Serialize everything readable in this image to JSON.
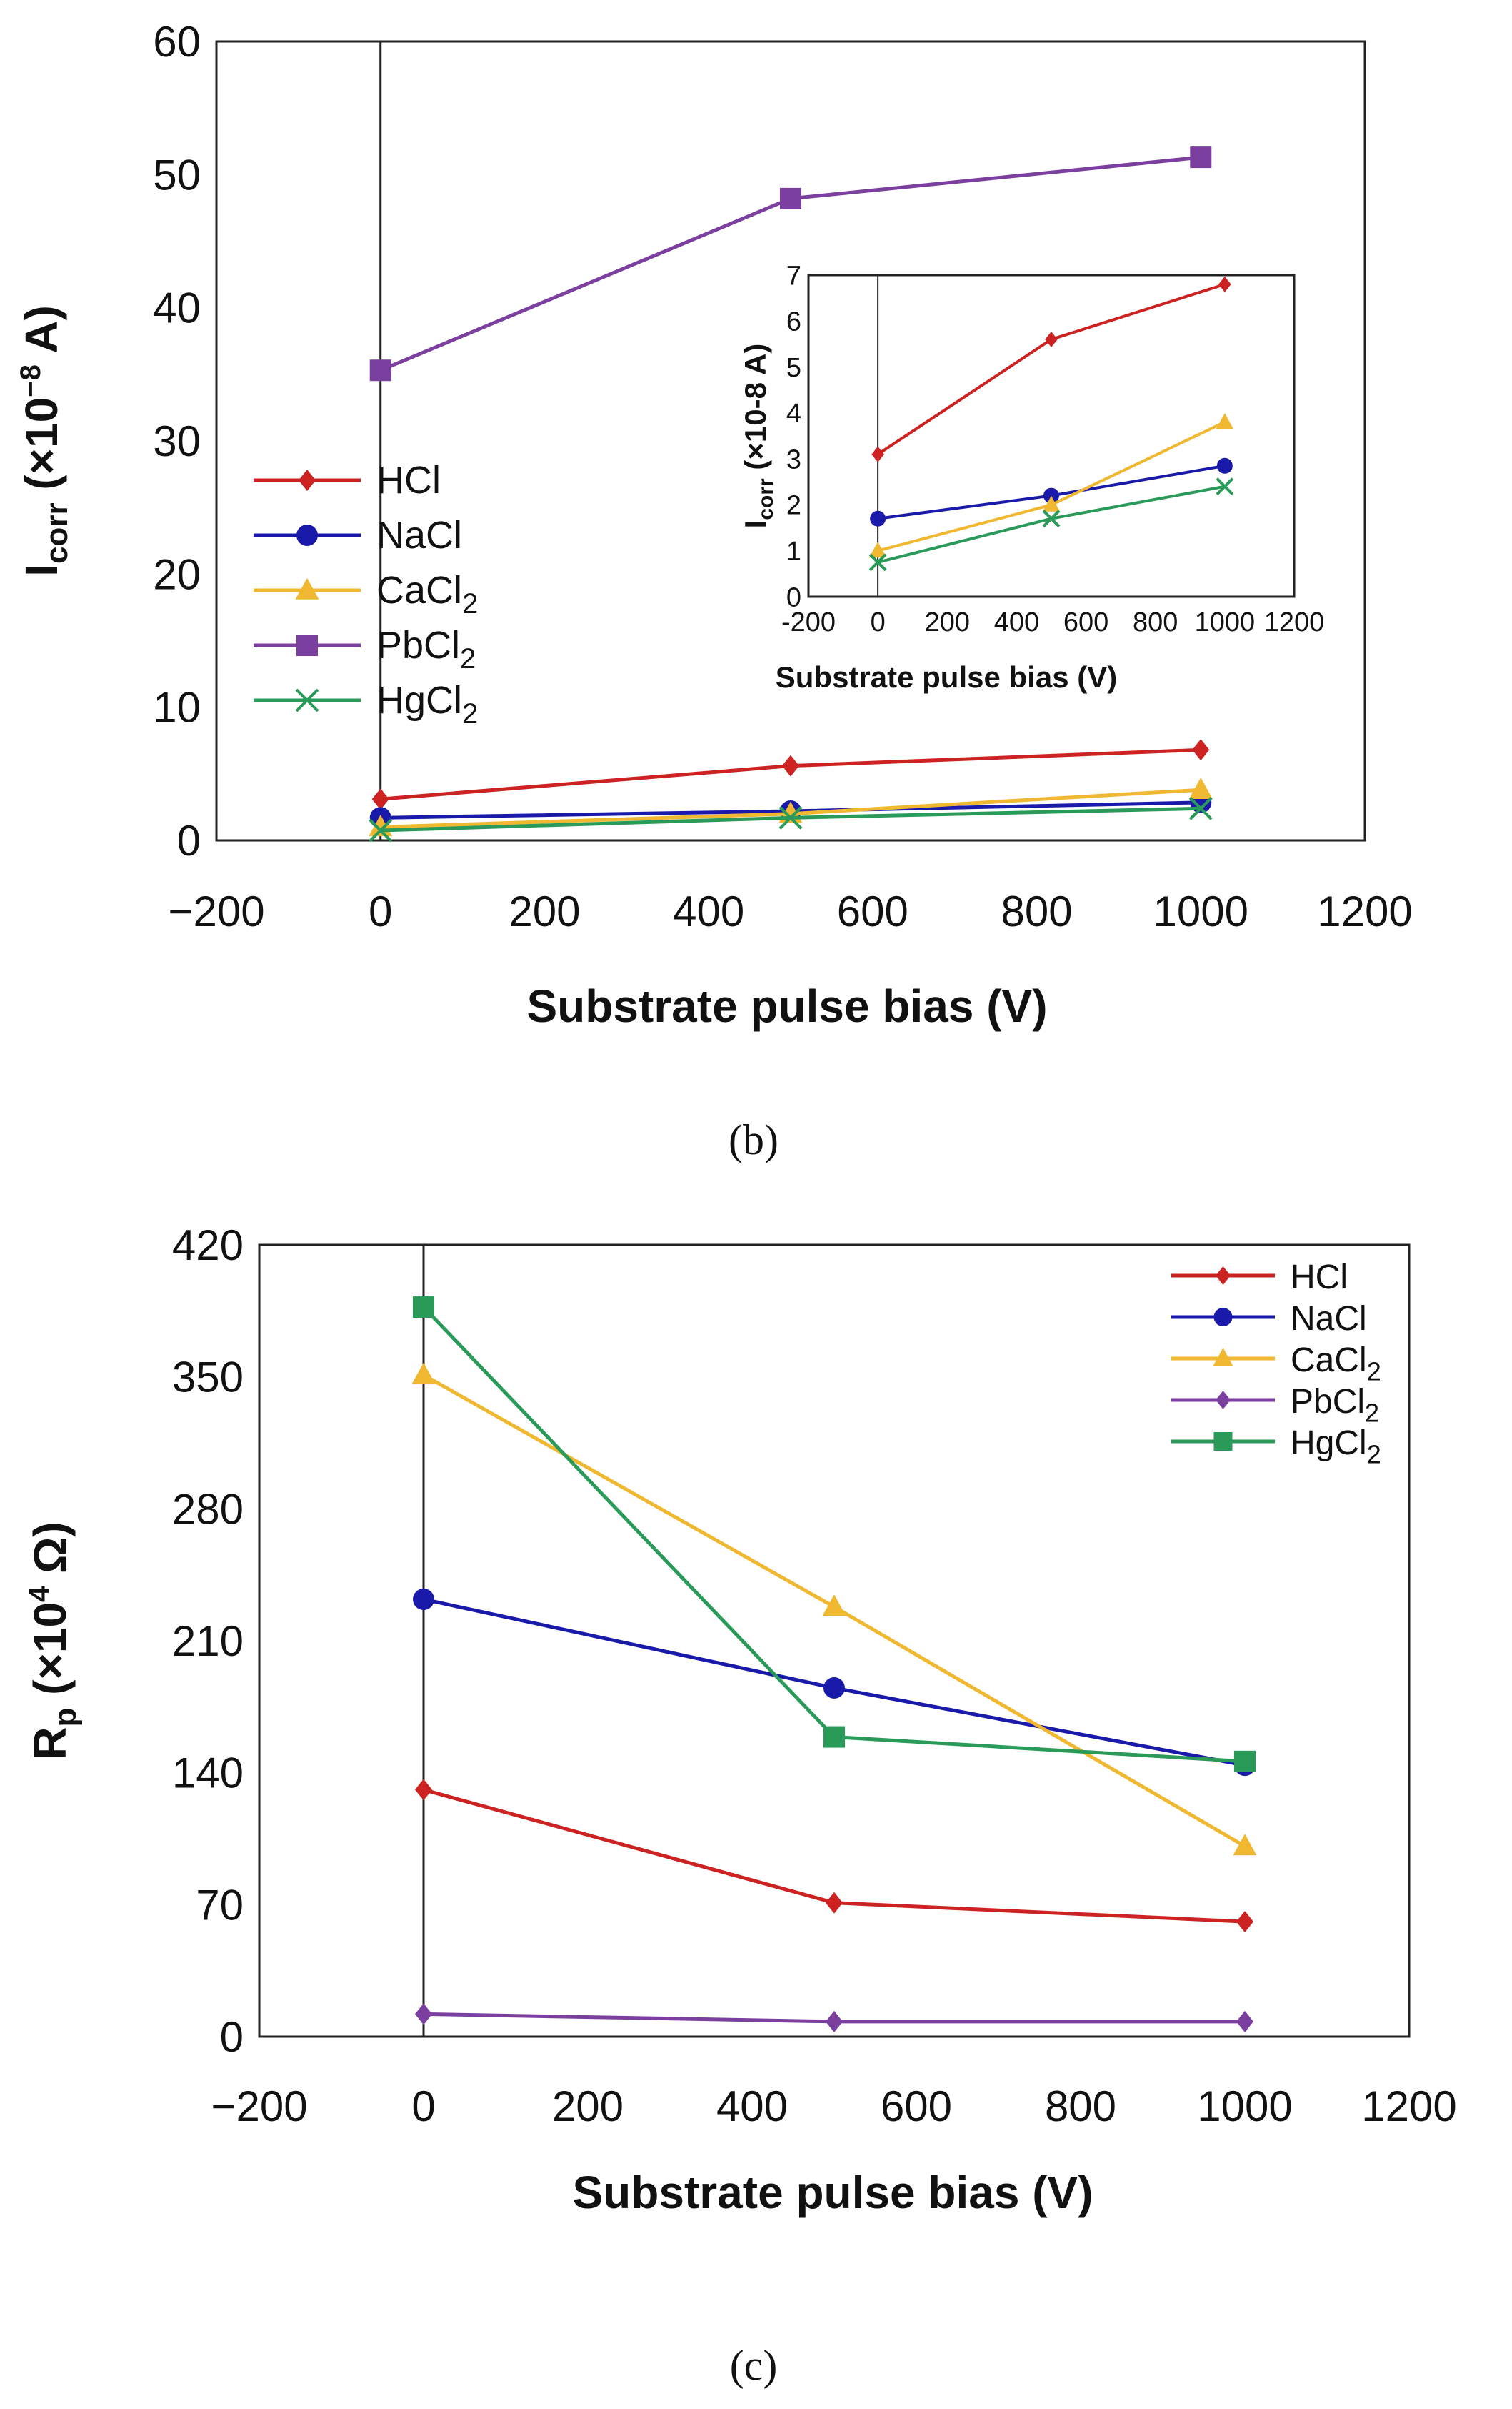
{
  "chart_data": [
    {
      "type": "line",
      "panel_label": "(b)",
      "xlabel": "Substrate pulse bias (V)",
      "ylabel": "I<sub>corr</sub> (×10⁻⁸ A)",
      "ylabel_parts": {
        "main": "I",
        "sub": "corr",
        "rest": " (×10",
        "sup": "−8",
        "end": " A)"
      },
      "xlim": [
        -200,
        1200
      ],
      "ylim": [
        0,
        60
      ],
      "xticks": [
        "−200",
        "0",
        "200",
        "400",
        "600",
        "800",
        "1000",
        "1200"
      ],
      "yticks": [
        "0",
        "10",
        "20",
        "30",
        "40",
        "50",
        "60"
      ],
      "legend_position": "left",
      "x": [
        0,
        500,
        1000
      ],
      "series": [
        {
          "name": "HCl",
          "label_main": "HCl",
          "label_sub": "",
          "color": "#cc2222",
          "marker": "diamond",
          "values": [
            3.1,
            5.6,
            6.8
          ]
        },
        {
          "name": "NaCl",
          "label_main": "NaCl",
          "label_sub": "",
          "color": "#1a1aaa",
          "marker": "circle",
          "values": [
            1.7,
            2.2,
            2.85
          ]
        },
        {
          "name": "CaCl2",
          "label_main": "CaCl",
          "label_sub": "2",
          "color": "#f0b830",
          "marker": "triangle",
          "values": [
            1.0,
            2.0,
            3.8
          ]
        },
        {
          "name": "PbCl2",
          "label_main": "PbCl",
          "label_sub": "2",
          "color": "#7b3fa0",
          "marker": "square",
          "values": [
            35.3,
            48.2,
            51.3
          ]
        },
        {
          "name": "HgCl2",
          "label_main": "HgCl",
          "label_sub": "2",
          "color": "#2a9a58",
          "marker": "x",
          "values": [
            0.75,
            1.7,
            2.4
          ]
        }
      ],
      "inset": {
        "xlabel": "Substrate pulse bias (V)",
        "ylabel_parts": {
          "main": "I",
          "sub": "corr",
          "rest": " (×10-8 A)"
        },
        "xlim": [
          -200,
          1200
        ],
        "ylim": [
          0,
          7
        ],
        "xticks": [
          "-200",
          "0",
          "200",
          "400",
          "600",
          "800",
          "1000",
          "1200"
        ],
        "yticks": [
          "0",
          "1",
          "2",
          "3",
          "4",
          "5",
          "6",
          "7"
        ],
        "series_shown": [
          "HCl",
          "NaCl",
          "CaCl2",
          "HgCl2"
        ]
      }
    },
    {
      "type": "line",
      "panel_label": "(c)",
      "xlabel": "Substrate pulse bias (V)",
      "ylabel_parts": {
        "main": "R",
        "sub": "p",
        "rest": " (×10",
        "sup": "4",
        "end": " Ω)"
      },
      "xlim": [
        -200,
        1200
      ],
      "ylim": [
        0,
        420
      ],
      "xticks": [
        "−200",
        "0",
        "200",
        "400",
        "600",
        "800",
        "1000",
        "1200"
      ],
      "yticks": [
        "0",
        "70",
        "140",
        "210",
        "280",
        "350",
        "420"
      ],
      "legend_position": "top-right",
      "x": [
        0,
        500,
        1000
      ],
      "series": [
        {
          "name": "HCl",
          "label_main": "HCl",
          "label_sub": "",
          "color": "#cc2222",
          "marker": "diamond",
          "values": [
            131,
            71,
            61
          ]
        },
        {
          "name": "NaCl",
          "label_main": "NaCl",
          "label_sub": "",
          "color": "#1a1aaa",
          "marker": "circle",
          "values": [
            232,
            185,
            144
          ]
        },
        {
          "name": "CaCl2",
          "label_main": "CaCl",
          "label_sub": "2",
          "color": "#f0b830",
          "marker": "triangle",
          "values": [
            351,
            228,
            101
          ]
        },
        {
          "name": "PbCl2",
          "label_main": "PbCl",
          "label_sub": "2",
          "color": "#7b3fa0",
          "marker": "diamond",
          "values": [
            12,
            8,
            8
          ]
        },
        {
          "name": "HgCl2",
          "label_main": "HgCl",
          "label_sub": "2",
          "color": "#2a9a58",
          "marker": "square",
          "values": [
            387,
            159,
            146
          ]
        }
      ]
    }
  ]
}
